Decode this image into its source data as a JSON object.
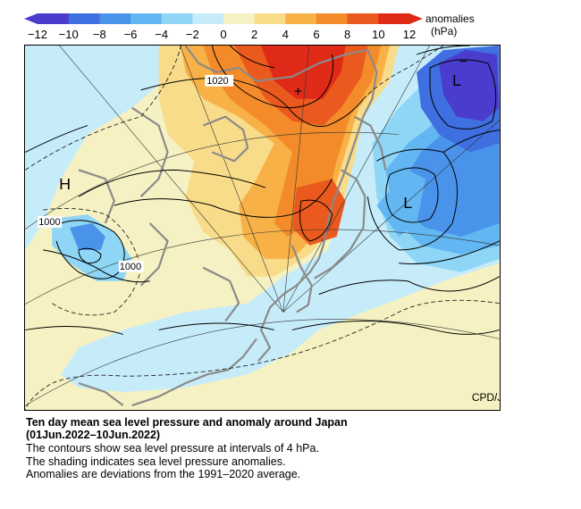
{
  "legend": {
    "title": "anomalies",
    "unit": "(hPa)",
    "ticks": [
      "−12",
      "−10",
      "−8",
      "−6",
      "−4",
      "−2",
      "0",
      "2",
      "4",
      "6",
      "8",
      "10",
      "12"
    ],
    "colors": [
      "#4a3ccc",
      "#3f6fe0",
      "#4a93ea",
      "#62b6f2",
      "#8fd6f6",
      "#c6ecfa",
      "#f6f1c2",
      "#f8dc8a",
      "#f8b146",
      "#f38b2a",
      "#ea5a1e",
      "#e02a18"
    ]
  },
  "map": {
    "credit": "CPD/JMA",
    "contour_labels": [
      "1020",
      "1000",
      "1000"
    ],
    "pressure_symbols": [
      "H",
      "L",
      "L",
      "+",
      "−"
    ]
  },
  "caption": {
    "title_line1": "Ten day mean sea level pressure and anomaly around Japan",
    "title_line2": "(01Jun.2022–10Jun.2022)",
    "line3": "The contours show sea level pressure at intervals of 4 hPa.",
    "line4": "The shading indicates sea level pressure anomalies.",
    "line5": "Anomalies are deviations from the 1991–2020 average."
  }
}
